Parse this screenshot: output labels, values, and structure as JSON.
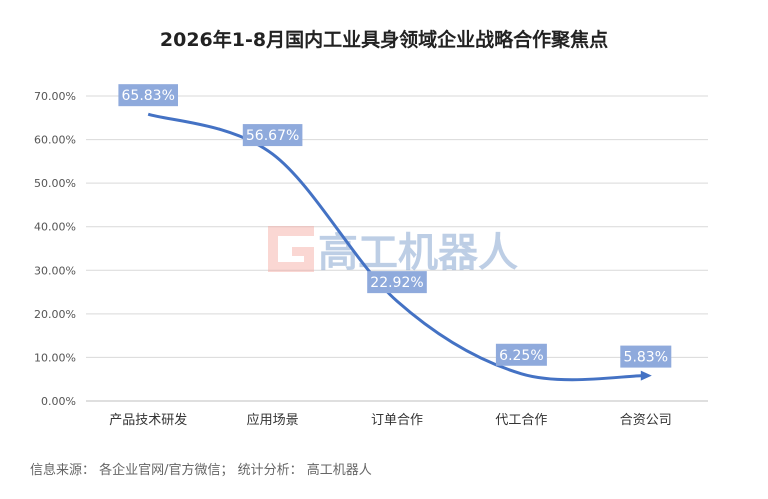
{
  "chart_data": {
    "type": "line",
    "title": "2026年1-8月国内工业具身领域企业战略合作聚焦点",
    "categories": [
      "产品技术研发",
      "应用场景",
      "订单合作",
      "代工合作",
      "合资公司"
    ],
    "values": [
      65.83,
      56.67,
      22.92,
      6.25,
      5.83
    ],
    "data_labels": [
      "65.83%",
      "56.67%",
      "22.92%",
      "6.25%",
      "5.83%"
    ],
    "yticks": [
      "0.00%",
      "10.00%",
      "20.00%",
      "30.00%",
      "40.00%",
      "50.00%",
      "60.00%",
      "70.00%"
    ],
    "ylim": [
      0,
      70
    ],
    "grid": true,
    "smooth": true,
    "line_color": "#4472c4",
    "label_bg_color": "#8faadc"
  },
  "watermark": {
    "text": "高工机器人",
    "logo_color": "#f4a7a0",
    "text_color": "#6f93c7"
  },
  "source": "信息来源： 各企业官网/官方微信； 统计分析： 高工机器人"
}
